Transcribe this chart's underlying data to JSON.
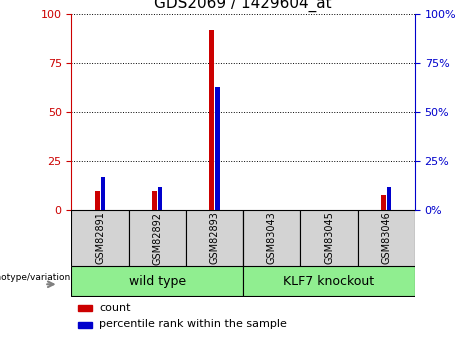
{
  "title": "GDS2069 / 1429604_at",
  "samples": [
    "GSM82891",
    "GSM82892",
    "GSM82893",
    "GSM83043",
    "GSM83045",
    "GSM83046"
  ],
  "count_values": [
    10,
    10,
    92,
    0.3,
    0.2,
    8
  ],
  "percentile_values": [
    17,
    12,
    63,
    0.3,
    0.2,
    12
  ],
  "groups": [
    {
      "label": "wild type",
      "start": 0,
      "end": 3,
      "color": "#90EE90"
    },
    {
      "label": "KLF7 knockout",
      "start": 3,
      "end": 6,
      "color": "#90EE90"
    }
  ],
  "ylim": [
    0,
    100
  ],
  "yticks": [
    0,
    25,
    50,
    75,
    100
  ],
  "count_color": "#CC0000",
  "percentile_color": "#0000CC",
  "left_axis_color": "#CC0000",
  "right_axis_color": "#0000CC",
  "genotype_label": "genotype/variation",
  "legend_count": "count",
  "legend_percentile": "percentile rank within the sample",
  "tick_label_fontsize": 8,
  "title_fontsize": 11,
  "background_color": "#ffffff",
  "plot_bg_color": "#ffffff",
  "sample_box_color": "#d3d3d3"
}
